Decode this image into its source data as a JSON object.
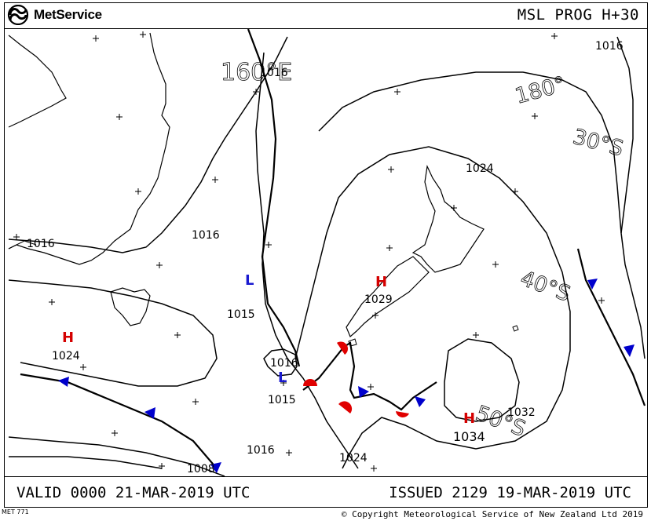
{
  "header": {
    "brand": "MetService",
    "chart_title": "MSL PROG H+30"
  },
  "footer": {
    "valid": "VALID 0000 21-MAR-2019 UTC",
    "issued": "ISSUED 2129 19-MAR-2019 UTC",
    "met_code": "MET 771",
    "copyright": "© Copyright Meteorological Service of New Zealand Ltd 2019"
  },
  "map": {
    "grid_labels": {
      "lon_160": "160°E",
      "lon_180": "180°",
      "lat_30": "30°S",
      "lat_40": "40°S",
      "lat_50": "50°S"
    },
    "isobar_labels": [
      "1016",
      "1016",
      "1024",
      "1016",
      "1016",
      "1015",
      "1016",
      "1015",
      "1029",
      "1024",
      "1024",
      "1016",
      "1008",
      "1032",
      "1034"
    ],
    "pressure_centres": [
      {
        "type": "H",
        "value": "1024"
      },
      {
        "type": "H",
        "value": "1029"
      },
      {
        "type": "H",
        "value": "1034"
      },
      {
        "type": "L",
        "value": "1015"
      },
      {
        "type": "L",
        "value": "1015"
      }
    ],
    "colors": {
      "high": "#d40000",
      "low": "#1a1ad0",
      "warm_front": "#e00000",
      "cold_front": "#0000cc",
      "line": "#000000"
    }
  }
}
